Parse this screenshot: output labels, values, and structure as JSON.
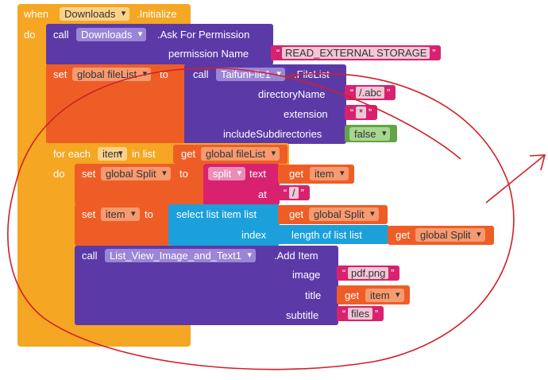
{
  "event": {
    "when": "when",
    "component": "Downloads",
    "event": ".Initialize",
    "do": "do"
  },
  "ask": {
    "call": "call",
    "component": "Downloads",
    "method": ".Ask For Permission",
    "param": "permission Name",
    "value": "READ_EXTERNAL STORAGE"
  },
  "setFileList": {
    "set": "set",
    "var": "global fileList",
    "to": "to",
    "call": "call",
    "component": "TaifunFile1",
    "method": ".FileList",
    "p1": "directoryName",
    "v1": "/.abc",
    "p2": "extension",
    "v2": "*",
    "p3": "includeSubdirectories",
    "v3": "false"
  },
  "foreach": {
    "label1": "for each",
    "item": "item",
    "label2": "in list",
    "get": "get",
    "var": "global fileList",
    "do": "do"
  },
  "setSplit": {
    "set": "set",
    "var": "global Split",
    "to": "to",
    "split": "split",
    "text": "text",
    "get": "get",
    "item": "item",
    "at": "at",
    "sep": "/"
  },
  "setItem": {
    "set": "set",
    "var": "item",
    "to": "to",
    "select": "select list item  list",
    "get": "get",
    "var2": "global Split",
    "index": "index",
    "length": "length of list  list",
    "get2": "get",
    "var3": "global Split"
  },
  "addItem": {
    "call": "call",
    "component": "List_View_Image_and_Text1",
    "method": ".Add Item",
    "p1": "image",
    "v1": "pdf.png",
    "p2": "title",
    "get": "get",
    "item": "item",
    "p3": "subtitle",
    "v3": "files"
  },
  "colors": {
    "control": "#f5a623",
    "procedure": "#5b3aa7",
    "variable": "#ef5d26",
    "text": "#d8226f",
    "list": "#1ba0dc",
    "logic": "#62a546",
    "annotation": "#d21f26"
  }
}
